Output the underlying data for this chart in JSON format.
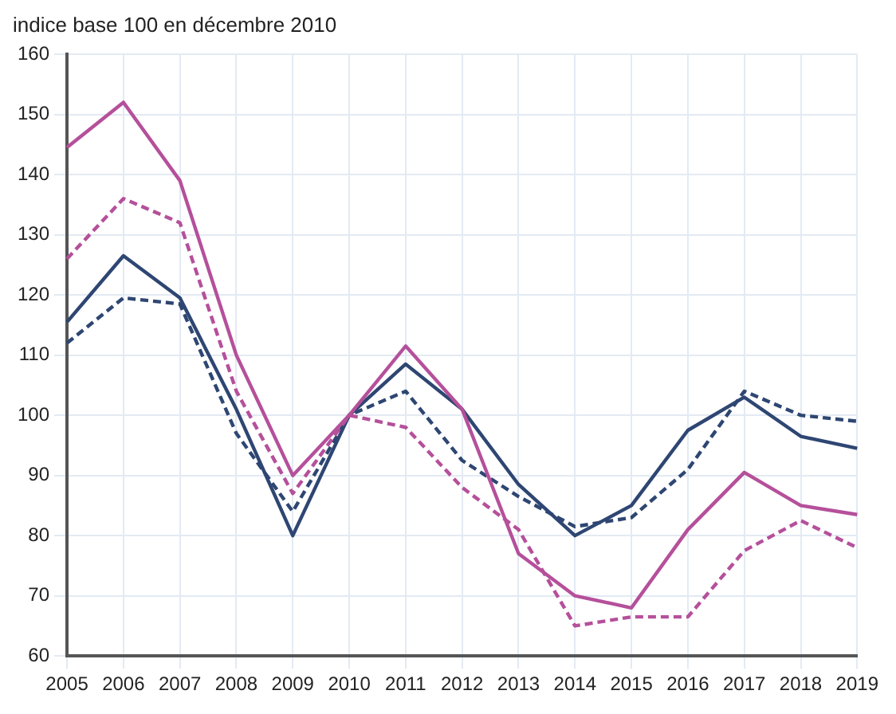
{
  "chart_data": {
    "type": "line",
    "ylabel": "indice base 100 en décembre 2010",
    "categories": [
      "2005",
      "2006",
      "2007",
      "2008",
      "2009",
      "2010",
      "2011",
      "2012",
      "2013",
      "2014",
      "2015",
      "2016",
      "2017",
      "2018",
      "2019"
    ],
    "series": [
      {
        "color": "#b5509b",
        "line_style": "solid",
        "values": [
          144.5,
          152,
          139,
          110,
          90,
          100,
          111.5,
          101,
          77,
          70,
          68,
          81,
          90.5,
          85,
          83.5
        ]
      },
      {
        "color": "#b5509b",
        "line_style": "dashed",
        "values": [
          126,
          136,
          132,
          104,
          87,
          100,
          98,
          88,
          81,
          65,
          66.5,
          66.5,
          77.5,
          82.5,
          78
        ]
      },
      {
        "color": "#2e4672",
        "line_style": "solid",
        "values": [
          115.5,
          126.5,
          119.5,
          101,
          80,
          100,
          108.5,
          101,
          88.5,
          80,
          85,
          97.5,
          103,
          96.5,
          94.5
        ]
      },
      {
        "color": "#2e4672",
        "line_style": "dashed",
        "values": [
          112,
          119.5,
          118.5,
          97,
          84,
          100,
          104,
          92.5,
          86.5,
          81.5,
          83,
          91,
          104,
          100,
          99
        ]
      }
    ],
    "ylim": [
      60,
      160
    ],
    "yticks": [
      60,
      70,
      80,
      90,
      100,
      110,
      120,
      130,
      140,
      150,
      160
    ],
    "grid": true,
    "legend": false,
    "marker": "none"
  }
}
